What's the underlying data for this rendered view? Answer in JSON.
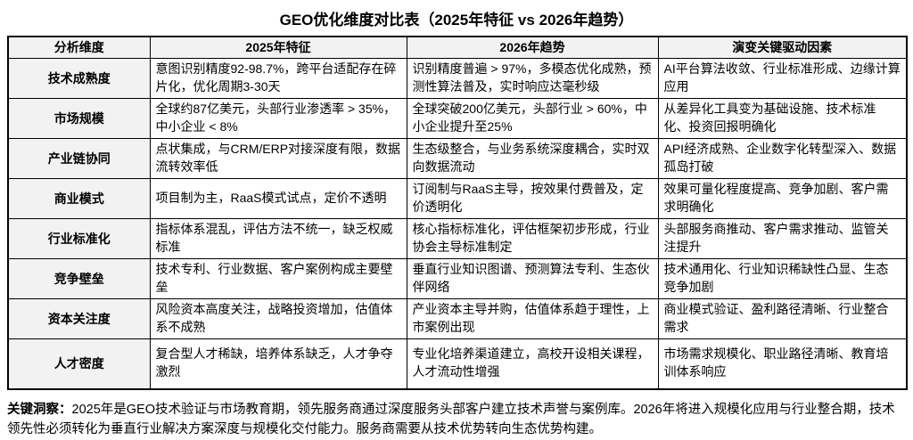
{
  "title": "GEO优化维度对比表（2025年特征 vs 2026年趋势）",
  "table": {
    "headers": [
      "分析维度",
      "2025年特征",
      "2026年趋势",
      "演变关键驱动因素"
    ],
    "rows": [
      {
        "dimension": "技术成熟度",
        "y2025": "意图识别精度92-98.7%，跨平台适配存在碎片化，优化周期3-30天",
        "y2026": "识别精度普遍 > 97%，多模态优化成熟，预测性算法普及，实时响应达毫秒级",
        "drivers": "AI平台算法收敛、行业标准形成、边缘计算应用"
      },
      {
        "dimension": "市场规模",
        "y2025": "全球约87亿美元，头部行业渗透率 > 35%，中小企业 < 8%",
        "y2026": "全球突破200亿美元，头部行业 > 60%，中小企业提升至25%",
        "drivers": "从差异化工具变为基础设施、技术标准化、投资回报明确化"
      },
      {
        "dimension": "产业链协同",
        "y2025": "点状集成，与CRM/ERP对接深度有限，数据流转效率低",
        "y2026": "生态级整合，与业务系统深度耦合，实时双向数据流动",
        "drivers": "API经济成熟、企业数字化转型深入、数据孤岛打破"
      },
      {
        "dimension": "商业模式",
        "y2025": "项目制为主，RaaS模式试点，定价不透明",
        "y2026": "订阅制与RaaS主导，按效果付费普及，定价透明化",
        "drivers": "效果可量化程度提高、竞争加剧、客户需求明确化"
      },
      {
        "dimension": "行业标准化",
        "y2025": "指标体系混乱，评估方法不统一，缺乏权威标准",
        "y2026": "核心指标标准化，评估框架初步形成，行业协会主导标准制定",
        "drivers": "头部服务商推动、客户需求推动、监管关注提升"
      },
      {
        "dimension": "竞争壁垒",
        "y2025": "技术专利、行业数据、客户案例构成主要壁垒",
        "y2026": "垂直行业知识图谱、预测算法专利、生态伙伴网络",
        "drivers": "技术通用化、行业知识稀缺性凸显、生态竞争加剧"
      },
      {
        "dimension": "资本关注度",
        "y2025": "风险资本高度关注，战略投资增加，估值体系不成熟",
        "y2026": "产业资本主导并购，估值体系趋于理性，上市案例出现",
        "drivers": "商业模式验证、盈利路径清晰、行业整合需求"
      },
      {
        "dimension": "人才密度",
        "y2025": "复合型人才稀缺，培养体系缺乏，人才争夺激烈",
        "y2026": "专业化培养渠道建立，高校开设相关课程，人才流动性增强",
        "drivers": "市场需求规模化、职业路径清晰、教育培训体系响应"
      }
    ]
  },
  "footer": {
    "label": "关键洞察：",
    "text": "2025年是GEO技术验证与市场教育期，领先服务商通过深度服务头部客户建立技术声誉与案例库。2026年将进入规模化应用与行业整合期，技术领先性必须转化为垂直行业解决方案深度与规模化交付能力。服务商需要从技术优势转向生态优势构建。"
  },
  "colors": {
    "header_bg": "#f2f2f2",
    "border": "#000000",
    "text": "#000000",
    "page_bg": "#ffffff"
  }
}
